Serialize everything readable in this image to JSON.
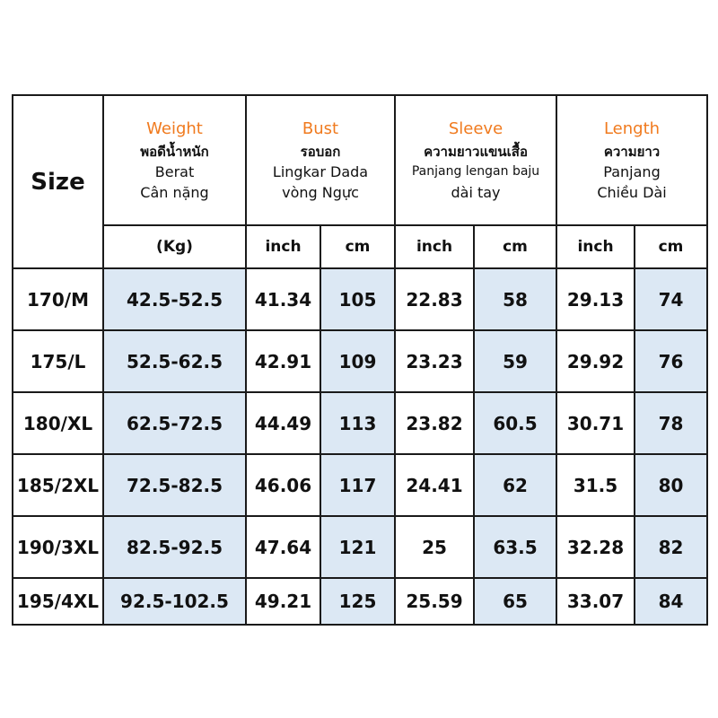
{
  "header": {
    "size": "Size",
    "weight": {
      "en": "Weight",
      "th": "พอดีน้ำหนัก",
      "id": "Berat",
      "vi": "Cân nặng"
    },
    "bust": {
      "en": "Bust",
      "th": "รอบอก",
      "id": "Lingkar Dada",
      "vi": "vòng Ngực"
    },
    "sleeve": {
      "en": "Sleeve",
      "th": "ความยาวแขนเสื้อ",
      "id": "Panjang lengan baju",
      "vi": "dài tay"
    },
    "length": {
      "en": "Length",
      "th": "ความยาว",
      "id": "Panjang",
      "vi": "Chiều Dài"
    }
  },
  "units": {
    "kg": "(Kg)",
    "inch": "inch",
    "cm": "cm"
  },
  "rows": [
    {
      "size": "170/M",
      "weight": "42.5-52.5",
      "bust_in": "41.34",
      "bust_cm": "105",
      "sleeve_in": "22.83",
      "sleeve_cm": "58",
      "length_in": "29.13",
      "length_cm": "74"
    },
    {
      "size": "175/L",
      "weight": "52.5-62.5",
      "bust_in": "42.91",
      "bust_cm": "109",
      "sleeve_in": "23.23",
      "sleeve_cm": "59",
      "length_in": "29.92",
      "length_cm": "76"
    },
    {
      "size": "180/XL",
      "weight": "62.5-72.5",
      "bust_in": "44.49",
      "bust_cm": "113",
      "sleeve_in": "23.82",
      "sleeve_cm": "60.5",
      "length_in": "30.71",
      "length_cm": "78"
    },
    {
      "size": "185/2XL",
      "weight": "72.5-82.5",
      "bust_in": "46.06",
      "bust_cm": "117",
      "sleeve_in": "24.41",
      "sleeve_cm": "62",
      "length_in": "31.5",
      "length_cm": "80"
    },
    {
      "size": "190/3XL",
      "weight": "82.5-92.5",
      "bust_in": "47.64",
      "bust_cm": "121",
      "sleeve_in": "25",
      "sleeve_cm": "63.5",
      "length_in": "32.28",
      "length_cm": "82"
    },
    {
      "size": "195/4XL",
      "weight": "92.5-102.5",
      "bust_in": "49.21",
      "bust_cm": "125",
      "sleeve_in": "25.59",
      "sleeve_cm": "65",
      "length_in": "33.07",
      "length_cm": "84"
    }
  ],
  "colors": {
    "accent_orange": "#f07a1e",
    "cell_blue": "#dce8f4",
    "border": "#1a1a1a"
  }
}
